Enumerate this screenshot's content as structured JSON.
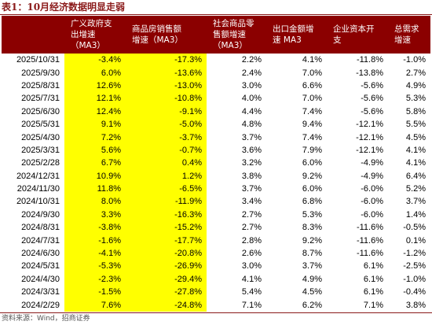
{
  "title": "表1：10月经济数据明显走弱",
  "columns": [
    "",
    "广义政府支\n出增速\n（MA3）",
    "商品房销售额\n增速（MA3）",
    "社会商品零\n售额增速\n（MA3）",
    "出口金额增\n速 MA3",
    "企业资本开\n支",
    "总需求\n增速"
  ],
  "rows": [
    [
      "2025/10/31",
      "-3.4%",
      "-17.3%",
      "2.2%",
      "4.1%",
      "-11.8%",
      "-1.0%"
    ],
    [
      "2025/9/30",
      "6.0%",
      "-13.6%",
      "2.4%",
      "7.0%",
      "-13.8%",
      "2.7%"
    ],
    [
      "2025/8/31",
      "12.6%",
      "-13.0%",
      "3.0%",
      "6.6%",
      "-5.6%",
      "4.9%"
    ],
    [
      "2025/7/31",
      "12.1%",
      "-10.8%",
      "4.0%",
      "7.0%",
      "-5.6%",
      "5.3%"
    ],
    [
      "2025/6/30",
      "12.4%",
      "-9.1%",
      "4.4%",
      "7.4%",
      "-5.6%",
      "5.8%"
    ],
    [
      "2025/5/31",
      "9.1%",
      "-5.0%",
      "4.8%",
      "9.4%",
      "-12.1%",
      "5.5%"
    ],
    [
      "2025/4/30",
      "7.2%",
      "-3.7%",
      "3.7%",
      "7.4%",
      "-12.1%",
      "4.5%"
    ],
    [
      "2025/3/31",
      "5.6%",
      "-0.7%",
      "3.6%",
      "7.9%",
      "-12.1%",
      "4.1%"
    ],
    [
      "2025/2/28",
      "6.7%",
      "0.4%",
      "3.2%",
      "6.0%",
      "-4.9%",
      "4.1%"
    ],
    [
      "2024/12/31",
      "10.9%",
      "1.2%",
      "3.8%",
      "9.2%",
      "-4.9%",
      "6.4%"
    ],
    [
      "2024/11/30",
      "11.8%",
      "-6.5%",
      "3.7%",
      "6.0%",
      "-6.0%",
      "5.2%"
    ],
    [
      "2024/10/31",
      "8.0%",
      "-11.9%",
      "3.4%",
      "6.8%",
      "-6.0%",
      "3.7%"
    ],
    [
      "2024/9/30",
      "3.3%",
      "-16.3%",
      "2.7%",
      "5.3%",
      "-6.0%",
      "1.4%"
    ],
    [
      "2024/8/31",
      "-3.8%",
      "-15.2%",
      "2.7%",
      "8.3%",
      "-11.6%",
      "-0.5%"
    ],
    [
      "2024/7/31",
      "-1.6%",
      "-17.7%",
      "2.8%",
      "9.2%",
      "-11.6%",
      "0.1%"
    ],
    [
      "2024/6/30",
      "-4.1%",
      "-20.8%",
      "2.6%",
      "8.7%",
      "-11.6%",
      "-1.2%"
    ],
    [
      "2024/5/31",
      "-5.3%",
      "-26.9%",
      "3.0%",
      "3.7%",
      "6.1%",
      "-2.5%"
    ],
    [
      "2024/4/30",
      "-2.3%",
      "-29.4%",
      "4.1%",
      "4.9%",
      "6.1%",
      "-1.0%"
    ],
    [
      "2024/3/31",
      "-1.5%",
      "-27.8%",
      "5.4%",
      "4.5%",
      "6.1%",
      "-0.4%"
    ],
    [
      "2024/2/29",
      "7.6%",
      "-24.8%",
      "7.1%",
      "6.2%",
      "7.1%",
      "3.8%"
    ]
  ],
  "source": "资料来源：Wind，招商证券",
  "colors": {
    "header_bg": "#8B0000",
    "header_text": "#ffffff",
    "highlight": "#FFFF00",
    "title": "#8B1A1A"
  }
}
